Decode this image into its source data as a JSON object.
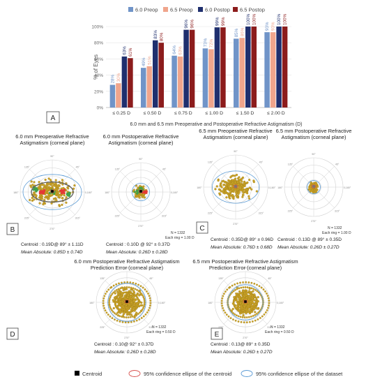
{
  "panel_a": {
    "letter": "A",
    "xlabel": "6.0 mm and 6.5 mm Preoperative and Postoperative Refractive Astigmatism (D)",
    "ylabel": "% of Eyes",
    "legend": [
      {
        "label": "6.0 Preop",
        "color": "#7094c8"
      },
      {
        "label": "6.5 Preop",
        "color": "#f0a58c"
      },
      {
        "label": "6.0 Postop",
        "color": "#1f2f6e"
      },
      {
        "label": "6.5 Postop",
        "color": "#8c1c1c"
      }
    ],
    "ytick_labels": [
      "0%",
      "20%",
      "40%",
      "60%",
      "80%",
      "100%"
    ]
  },
  "chart_data": {
    "type": "bar",
    "categories": [
      "≤ 0.25 D",
      "≤ 0.50 D",
      "≤ 0.75 D",
      "≤ 1.00 D",
      "≤ 1.50 D",
      "≤ 2.00 D"
    ],
    "ylim": [
      0,
      100
    ],
    "series": [
      {
        "name": "6.0 Preop",
        "values": [
          28,
          49,
          64,
          73,
          85,
          93
        ],
        "labels": [
          "28%",
          "49%",
          "64%",
          "73%",
          "85%",
          "93%"
        ]
      },
      {
        "name": "6.5 Preop",
        "values": [
          30,
          51,
          63,
          72,
          86,
          93
        ],
        "labels": [
          "30%",
          "51%",
          "63%",
          "72%",
          "86%",
          "93%"
        ]
      },
      {
        "name": "6.0 Postop",
        "values": [
          63,
          83,
          96,
          99,
          100,
          100
        ],
        "labels": [
          "63%",
          "83%",
          "96%",
          "99%",
          "100%",
          "100%"
        ]
      },
      {
        "name": "6.5 Postop",
        "values": [
          61,
          80,
          96,
          99,
          100,
          100
        ],
        "labels": [
          "61%",
          "80%",
          "96%",
          "99%",
          "100%",
          "100%"
        ]
      }
    ]
  },
  "panels": [
    {
      "letter": "B",
      "title1": "6.0 mm Preoperative Refractive",
      "title2": "Astigmatism (corneal plane)",
      "centroid_label": "Centroid :",
      "centroid_value": "0.19D@ 89° ± 1.11D",
      "mean_label": "Mean Absolute:",
      "mean_value": "0.85D ± 0.74D"
    },
    {
      "letter": "",
      "title1": "6.0 mm Postoperative Refractive",
      "title2": "Astigmatism (corneal plane)",
      "centroid_label": "Centroid :",
      "centroid_value": "0.10D @ 92° ± 0.37D",
      "mean_label": "Mean Absolute:",
      "mean_value": "0.26D ± 0.28D",
      "n_label": "N = 1332",
      "ring_label": "Each ring = 1.00 D"
    },
    {
      "letter": "C",
      "title1": "6.5 mm Preoperative Refractive",
      "title2": "Astigmatism (corneal plane)",
      "centroid_label": "Centroid :",
      "centroid_value": "0.35D@ 89° ± 0.96D",
      "mean_label": "Mean Absolute:",
      "mean_value": "0.76D ± 0.68D"
    },
    {
      "letter": "",
      "title1": "6.5 mm Postoperative Refractive",
      "title2": "Astigmatism (corneal plane)",
      "centroid_label": "Centroid :",
      "centroid_value": "0.13D @ 89° ± 0.35D",
      "mean_label": "Mean Absolute:",
      "mean_value": "0.26D ± 0.27D",
      "n_label": "N = 1332",
      "ring_label": "Each ring = 1.00 D"
    },
    {
      "letter": "D",
      "title1": "6.0 mm Postoperative Refractive Astigmatism",
      "title2": "Prediction Error (corneal plane)",
      "centroid_label": "Centroid :",
      "centroid_value": "0.10@ 92° ± 0.37D",
      "mean_label": "Mean Absolute:",
      "mean_value": "0.26D ± 0.28D",
      "n_label": "N = 1332",
      "ring_label": "Each ring = 0.50 D"
    },
    {
      "letter": "E",
      "title1": "6.5 mm Postoperative Refractive Astigmatism",
      "title2": "Prediction Error (corneal plane)",
      "centroid_label": "Centroid :",
      "centroid_value": "0.13@ 89° ± 0.35D",
      "mean_label": "Mean Absolute:",
      "mean_value": "0.26D ± 0.27D",
      "n_label": "N = 1332",
      "ring_label": "Each ring = 0.50 D"
    }
  ],
  "bottom_legend": {
    "centroid": "Centroid",
    "ellipse_centroid": "95% confidence ellipse of the centroid",
    "ellipse_dataset": "95% confidence ellipse of the dataset",
    "colors": {
      "centroid": "#000000",
      "ellipse_centroid": "#d9534f",
      "ellipse_dataset": "#5b9bd5"
    }
  },
  "colors": {
    "dots": "#c9a227",
    "gridline": "#d0d0d0"
  }
}
